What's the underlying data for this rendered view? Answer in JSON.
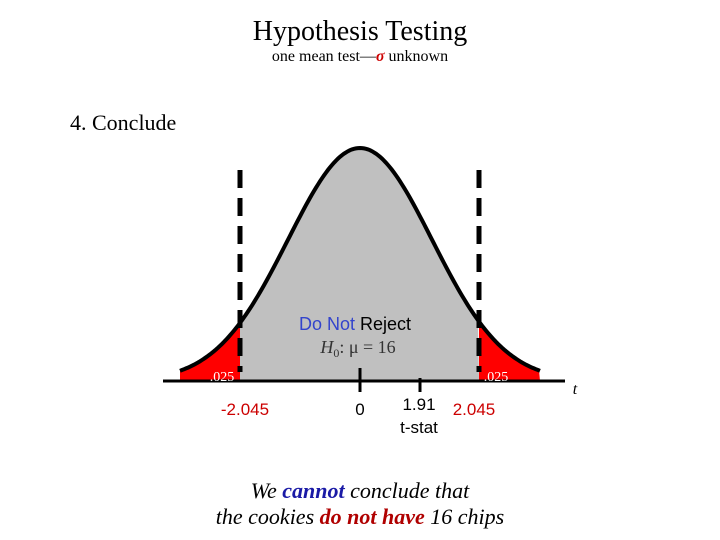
{
  "slide": {
    "title": "Hypothesis Testing",
    "subtitle_pre": "one mean test—",
    "subtitle_sigma": "σ",
    "subtitle_post": " unknown",
    "step": "4.  Conclude"
  },
  "diagram": {
    "region_label_do_not": "Do Not",
    "region_label_reject": " Reject",
    "null_h": "H",
    "null_sub": "0",
    "null_rest": ":  μ = 16",
    "tail_left_label": ".025",
    "tail_right_label": ".025",
    "axis_label": "t",
    "tick_left": "-2.045",
    "tick_zero": "0",
    "tick_stat": "1.91",
    "tick_stat_caption": "t-stat",
    "tick_right": "2.045",
    "colors": {
      "body": "#c0c0c0",
      "tail": "#ff0000",
      "blue": "#3344cc",
      "red": "#cc0000"
    }
  },
  "conclusion": {
    "l1_a": "We ",
    "l1_b": "cannot",
    "l1_c": " conclude that",
    "l2_a": "the cookies ",
    "l2_b": "do not have",
    "l2_c": " 16 chips"
  }
}
